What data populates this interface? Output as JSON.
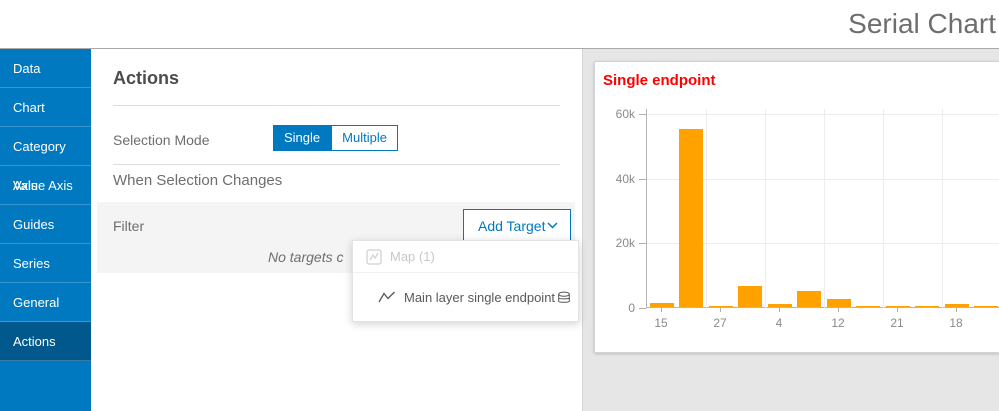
{
  "header": {
    "title": "Serial Chart"
  },
  "sidebar": {
    "items": [
      {
        "label": "Data",
        "selected": false
      },
      {
        "label": "Chart",
        "selected": false
      },
      {
        "label": "Category Axis",
        "selected": false
      },
      {
        "label": "Value Axis",
        "selected": false
      },
      {
        "label": "Guides",
        "selected": false
      },
      {
        "label": "Series",
        "selected": false
      },
      {
        "label": "General",
        "selected": false
      },
      {
        "label": "Actions",
        "selected": true
      }
    ]
  },
  "panel": {
    "title": "Actions",
    "selection_mode": {
      "label": "Selection Mode",
      "options": [
        {
          "label": "Single",
          "selected": true
        },
        {
          "label": "Multiple",
          "selected": false
        }
      ]
    },
    "section_title": "When Selection Changes",
    "filter": {
      "label": "Filter",
      "add_target_label": "Add Target",
      "add_target_icon": "chevron-down-icon",
      "empty_text": "No targets c"
    },
    "dropdown": {
      "items": [
        {
          "label": "Map (1)",
          "icon": "map-icon",
          "disabled": true
        },
        {
          "label": "Main layer single endpoint",
          "icon": "line-chart-icon",
          "trailing_icon": "layer-source-icon",
          "disabled": false
        }
      ]
    }
  },
  "colors": {
    "accent_blue": "#0079c1",
    "sidebar_selected": "#00588c",
    "bar_orange": "#ffa200",
    "chart_title_red": "#ff0000",
    "background_gray": "#e6e6e6"
  },
  "chart_data": {
    "type": "bar",
    "title": "Single endpoint",
    "title_color": "#ff0000",
    "bar_color": "#ffa200",
    "categories": [
      "15",
      "",
      "27",
      "",
      "4",
      "",
      "12",
      "",
      "21",
      "",
      "18",
      ""
    ],
    "values": [
      1200,
      55000,
      400,
      6500,
      800,
      5000,
      2500,
      400,
      300,
      400,
      1000,
      400
    ],
    "y_ticks": [
      {
        "label": "60k",
        "value": 60000
      },
      {
        "label": "40k",
        "value": 40000
      },
      {
        "label": "20k",
        "value": 20000
      },
      {
        "label": "0",
        "value": 0
      }
    ],
    "ylim": [
      0,
      60000
    ],
    "grid": true,
    "legend": "none",
    "xlabel": "",
    "ylabel": ""
  }
}
